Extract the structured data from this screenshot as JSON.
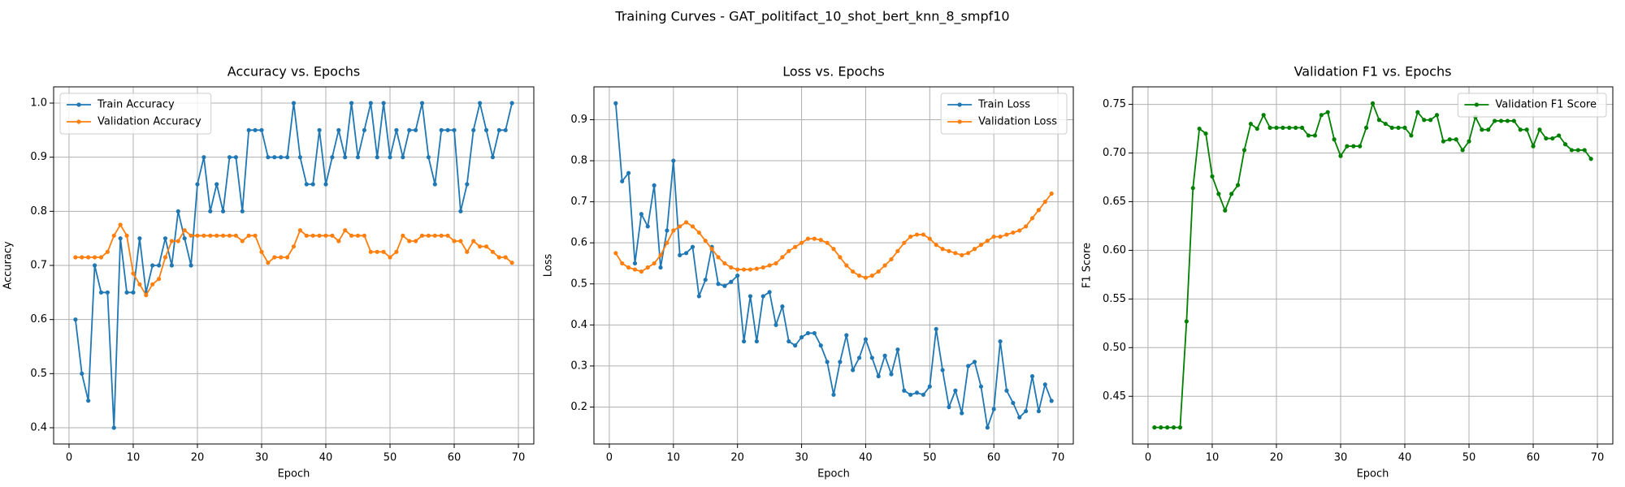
{
  "title": "Training Curves - GAT_politifact_10_shot_bert_knn_8_smpf10",
  "chart_data": [
    {
      "type": "line",
      "title": "Accuracy vs. Epochs",
      "xlabel": "Epoch",
      "ylabel": "Accuracy",
      "x": [
        1,
        2,
        3,
        4,
        5,
        6,
        7,
        8,
        9,
        10,
        11,
        12,
        13,
        14,
        15,
        16,
        17,
        18,
        19,
        20,
        21,
        22,
        23,
        24,
        25,
        26,
        27,
        28,
        29,
        30,
        31,
        32,
        33,
        34,
        35,
        36,
        37,
        38,
        39,
        40,
        41,
        42,
        43,
        44,
        45,
        46,
        47,
        48,
        49,
        50,
        51,
        52,
        53,
        54,
        55,
        56,
        57,
        58,
        59,
        60,
        61,
        62,
        63,
        64,
        65,
        66,
        67,
        68,
        69
      ],
      "series": [
        {
          "name": "Train Accuracy",
          "color": "#1f77b4",
          "values": [
            0.6,
            0.5,
            0.45,
            0.7,
            0.65,
            0.65,
            0.4,
            0.75,
            0.65,
            0.65,
            0.75,
            0.65,
            0.7,
            0.7,
            0.75,
            0.7,
            0.8,
            0.75,
            0.7,
            0.85,
            0.9,
            0.8,
            0.85,
            0.8,
            0.9,
            0.9,
            0.8,
            0.95,
            0.95,
            0.95,
            0.9,
            0.9,
            0.9,
            0.9,
            1.0,
            0.9,
            0.85,
            0.85,
            0.95,
            0.85,
            0.9,
            0.95,
            0.9,
            1.0,
            0.9,
            0.95,
            1.0,
            0.9,
            1.0,
            0.9,
            0.95,
            0.9,
            0.95,
            0.95,
            1.0,
            0.9,
            0.85,
            0.95,
            0.95,
            0.95,
            0.8,
            0.85,
            0.95,
            1.0,
            0.95,
            0.9,
            0.95,
            0.95,
            1.0
          ]
        },
        {
          "name": "Validation Accuracy",
          "color": "#ff7f0e",
          "values": [
            0.715,
            0.715,
            0.715,
            0.715,
            0.715,
            0.725,
            0.755,
            0.775,
            0.755,
            0.685,
            0.665,
            0.645,
            0.665,
            0.675,
            0.715,
            0.745,
            0.745,
            0.765,
            0.755,
            0.755,
            0.755,
            0.755,
            0.755,
            0.755,
            0.755,
            0.755,
            0.745,
            0.755,
            0.755,
            0.725,
            0.705,
            0.715,
            0.715,
            0.715,
            0.735,
            0.765,
            0.755,
            0.755,
            0.755,
            0.755,
            0.755,
            0.745,
            0.765,
            0.755,
            0.755,
            0.755,
            0.725,
            0.725,
            0.725,
            0.715,
            0.725,
            0.755,
            0.745,
            0.745,
            0.755,
            0.755,
            0.755,
            0.755,
            0.755,
            0.745,
            0.745,
            0.725,
            0.745,
            0.735,
            0.735,
            0.725,
            0.715,
            0.715,
            0.705
          ]
        }
      ],
      "xlim": [
        -2.4,
        72.4
      ],
      "ylim": [
        0.37,
        1.03
      ],
      "xticks": [
        0,
        10,
        20,
        30,
        40,
        50,
        60,
        70
      ],
      "yticks": [
        0.4,
        0.5,
        0.6,
        0.7,
        0.8,
        0.9,
        {
          "value": 1,
          "label": "1.0"
        }
      ],
      "grid": true,
      "legend": "upper left"
    },
    {
      "type": "line",
      "title": "Loss vs. Epochs",
      "xlabel": "Epoch",
      "ylabel": "Loss",
      "x": [
        1,
        2,
        3,
        4,
        5,
        6,
        7,
        8,
        9,
        10,
        11,
        12,
        13,
        14,
        15,
        16,
        17,
        18,
        19,
        20,
        21,
        22,
        23,
        24,
        25,
        26,
        27,
        28,
        29,
        30,
        31,
        32,
        33,
        34,
        35,
        36,
        37,
        38,
        39,
        40,
        41,
        42,
        43,
        44,
        45,
        46,
        47,
        48,
        49,
        50,
        51,
        52,
        53,
        54,
        55,
        56,
        57,
        58,
        59,
        60,
        61,
        62,
        63,
        64,
        65,
        66,
        67,
        68,
        69
      ],
      "series": [
        {
          "name": "Train Loss",
          "color": "#1f77b4",
          "values": [
            0.94,
            0.75,
            0.77,
            0.55,
            0.67,
            0.64,
            0.74,
            0.54,
            0.63,
            0.8,
            0.57,
            0.575,
            0.59,
            0.47,
            0.51,
            0.59,
            0.5,
            0.495,
            0.505,
            0.52,
            0.36,
            0.47,
            0.36,
            0.47,
            0.48,
            0.4,
            0.445,
            0.36,
            0.35,
            0.37,
            0.38,
            0.38,
            0.35,
            0.31,
            0.23,
            0.31,
            0.375,
            0.29,
            0.32,
            0.365,
            0.32,
            0.275,
            0.325,
            0.28,
            0.34,
            0.24,
            0.23,
            0.235,
            0.23,
            0.25,
            0.39,
            0.29,
            0.2,
            0.24,
            0.185,
            0.3,
            0.31,
            0.25,
            0.15,
            0.195,
            0.36,
            0.24,
            0.21,
            0.175,
            0.19,
            0.275,
            0.19,
            0.255,
            0.215
          ]
        },
        {
          "name": "Validation Loss",
          "color": "#ff7f0e",
          "values": [
            0.575,
            0.55,
            0.54,
            0.535,
            0.53,
            0.54,
            0.55,
            0.57,
            0.6,
            0.63,
            0.64,
            0.65,
            0.64,
            0.625,
            0.605,
            0.585,
            0.565,
            0.55,
            0.54,
            0.535,
            0.535,
            0.535,
            0.537,
            0.54,
            0.545,
            0.55,
            0.565,
            0.58,
            0.59,
            0.6,
            0.61,
            0.61,
            0.607,
            0.6,
            0.585,
            0.565,
            0.545,
            0.53,
            0.52,
            0.515,
            0.52,
            0.53,
            0.545,
            0.56,
            0.58,
            0.6,
            0.615,
            0.62,
            0.62,
            0.61,
            0.595,
            0.585,
            0.58,
            0.575,
            0.57,
            0.575,
            0.585,
            0.595,
            0.605,
            0.615,
            0.615,
            0.62,
            0.625,
            0.63,
            0.64,
            0.66,
            0.68,
            0.7,
            0.72
          ]
        }
      ],
      "xlim": [
        -2.4,
        72.4
      ],
      "ylim": [
        0.11,
        0.98
      ],
      "xticks": [
        0,
        10,
        20,
        30,
        40,
        50,
        60,
        70
      ],
      "yticks": [
        0.2,
        0.3,
        0.4,
        0.5,
        0.6,
        0.7,
        0.8,
        0.9
      ],
      "grid": true,
      "legend": "upper right"
    },
    {
      "type": "line",
      "title": "Validation F1 vs. Epochs",
      "xlabel": "Epoch",
      "ylabel": "F1 Score",
      "x": [
        1,
        2,
        3,
        4,
        5,
        6,
        7,
        8,
        9,
        10,
        11,
        12,
        13,
        14,
        15,
        16,
        17,
        18,
        19,
        20,
        21,
        22,
        23,
        24,
        25,
        26,
        27,
        28,
        29,
        30,
        31,
        32,
        33,
        34,
        35,
        36,
        37,
        38,
        39,
        40,
        41,
        42,
        43,
        44,
        45,
        46,
        47,
        48,
        49,
        50,
        51,
        52,
        53,
        54,
        55,
        56,
        57,
        58,
        59,
        60,
        61,
        62,
        63,
        64,
        65,
        66,
        67,
        68,
        69
      ],
      "series": [
        {
          "name": "Validation F1 Score",
          "color": "#008000",
          "values": [
            0.418,
            0.418,
            0.418,
            0.418,
            0.418,
            0.527,
            0.664,
            0.725,
            0.72,
            0.676,
            0.658,
            0.641,
            0.658,
            0.667,
            0.703,
            0.73,
            0.725,
            0.739,
            0.726,
            0.726,
            0.726,
            0.726,
            0.726,
            0.726,
            0.718,
            0.718,
            0.739,
            0.742,
            0.714,
            0.697,
            0.707,
            0.707,
            0.707,
            0.726,
            0.751,
            0.734,
            0.73,
            0.726,
            0.726,
            0.726,
            0.718,
            0.742,
            0.734,
            0.734,
            0.739,
            0.712,
            0.714,
            0.714,
            0.703,
            0.712,
            0.737,
            0.724,
            0.724,
            0.733,
            0.733,
            0.733,
            0.733,
            0.724,
            0.724,
            0.707,
            0.724,
            0.715,
            0.715,
            0.718,
            0.709,
            0.703,
            0.703,
            0.703,
            0.694
          ]
        }
      ],
      "xlim": [
        -2.4,
        72.4
      ],
      "ylim": [
        0.401,
        0.768
      ],
      "xticks": [
        0,
        10,
        20,
        30,
        40,
        50,
        60,
        70
      ],
      "yticks": [
        0.45,
        {
          "value": 0.5,
          "label": "0.50"
        },
        0.55,
        {
          "value": 0.6,
          "label": "0.60"
        },
        0.65,
        {
          "value": 0.7,
          "label": "0.70"
        },
        0.75
      ],
      "grid": true,
      "legend": "upper right"
    }
  ]
}
